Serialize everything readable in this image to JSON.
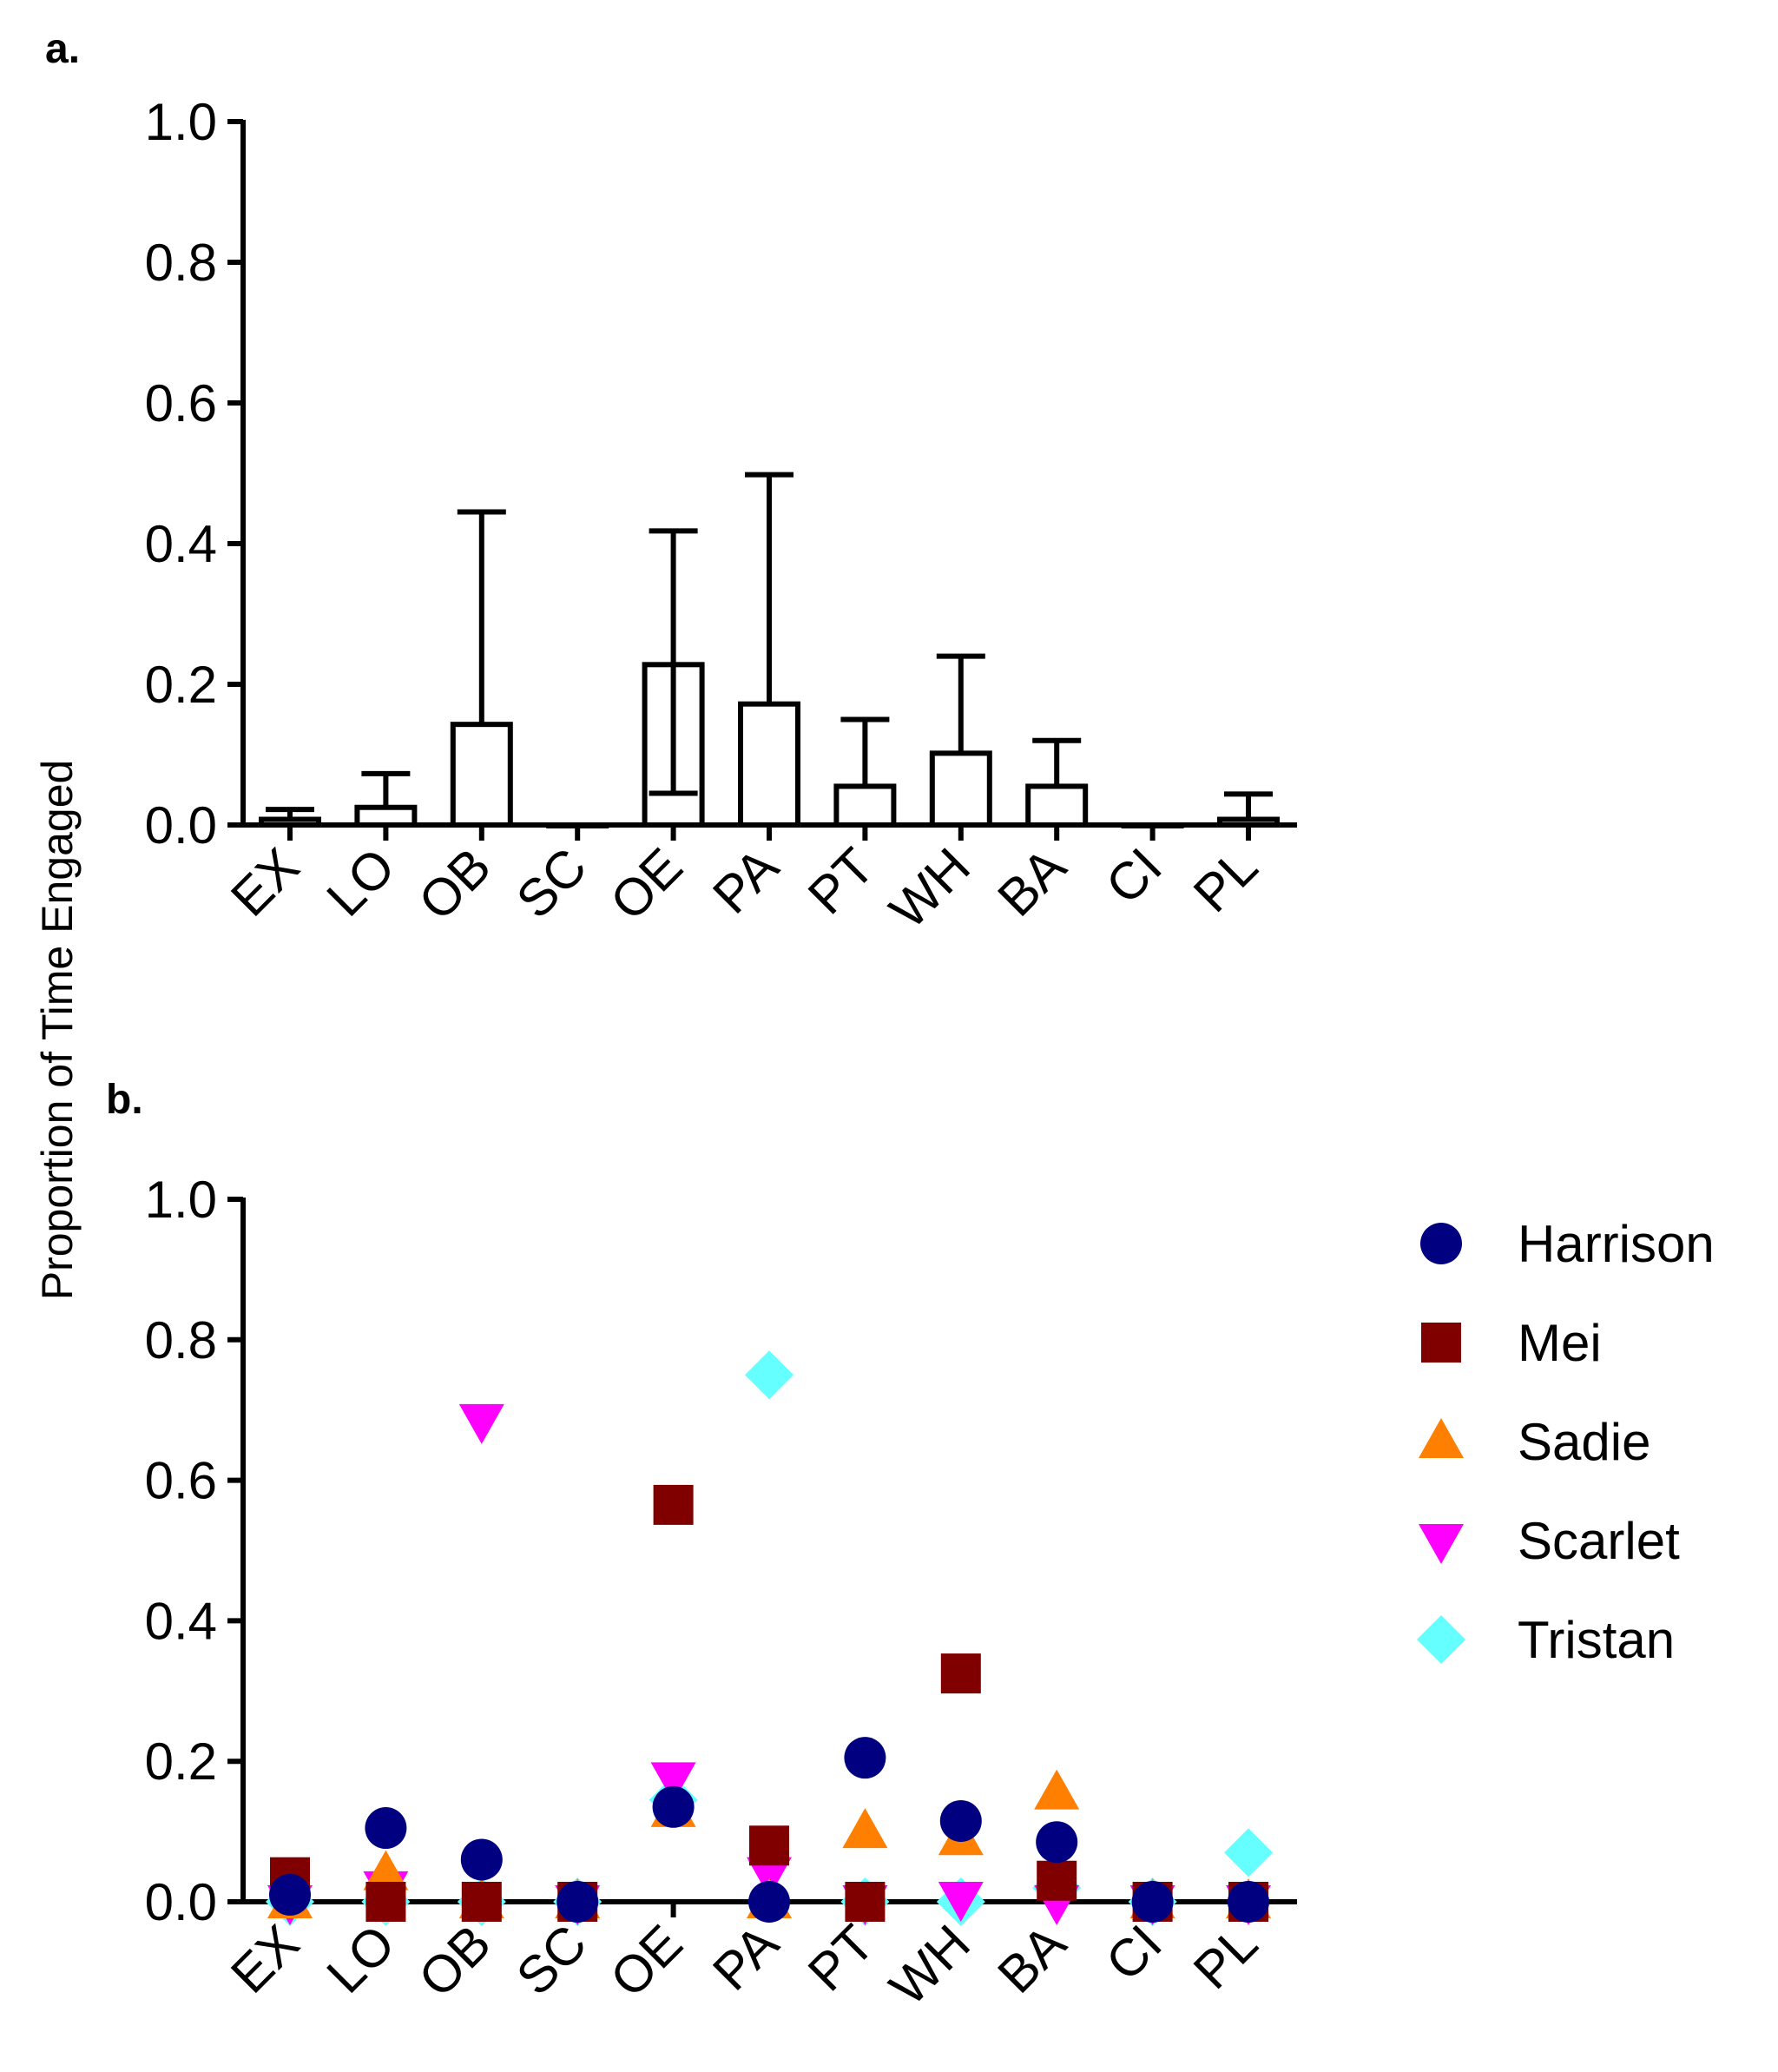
{
  "y_axis_title": "Proportion of Time Engaged",
  "chart_data": [
    {
      "panel": "a.",
      "type": "bar",
      "categories": [
        "EX",
        "LO",
        "OB",
        "SC",
        "OE",
        "PA",
        "PT",
        "WH",
        "BA",
        "CI",
        "PL"
      ],
      "values": [
        0.008,
        0.025,
        0.143,
        0.0,
        0.228,
        0.172,
        0.055,
        0.102,
        0.055,
        0.0,
        0.008
      ],
      "error_upper": [
        0.022,
        0.073,
        0.445,
        0.0,
        0.418,
        0.498,
        0.15,
        0.24,
        0.12,
        0.0,
        0.044
      ],
      "error_lower": [
        0.0,
        0.0,
        0.0,
        0.0,
        0.045,
        0.0,
        0.0,
        0.0,
        0.0,
        0.0,
        0.0
      ],
      "ylabel": "Proportion of Time Engaged",
      "ylim": [
        0,
        1.0
      ],
      "yticks": [
        "0.0",
        "0.2",
        "0.4",
        "0.6",
        "0.8",
        "1.0"
      ],
      "grid": false
    },
    {
      "panel": "b.",
      "type": "scatter",
      "categories": [
        "EX",
        "LO",
        "OB",
        "SC",
        "OE",
        "PA",
        "PT",
        "WH",
        "BA",
        "CI",
        "PL"
      ],
      "ylabel": "Proportion of Time Engaged",
      "ylim": [
        0,
        1.0
      ],
      "yticks": [
        "0.0",
        "0.2",
        "0.4",
        "0.6",
        "0.8",
        "1.0"
      ],
      "legend_position": "right",
      "series": [
        {
          "name": "Tristan",
          "marker": "diamond",
          "color": "#66FFFF",
          "values": [
            0.0,
            0.0,
            0.0,
            0.0,
            0.145,
            0.75,
            0.0,
            0.0,
            0.02,
            0.0,
            0.07
          ]
        },
        {
          "name": "Scarlet",
          "marker": "triangle-down",
          "color": "#FF00FF",
          "values": [
            0.0,
            0.02,
            0.685,
            0.0,
            0.175,
            0.04,
            0.0,
            0.005,
            0.0,
            0.0,
            0.0
          ]
        },
        {
          "name": "Sadie",
          "marker": "triangle-up",
          "color": "#FF7F00",
          "values": [
            0.0,
            0.04,
            0.0,
            0.0,
            0.13,
            0.0,
            0.1,
            0.09,
            0.155,
            0.0,
            0.0
          ]
        },
        {
          "name": "Mei",
          "marker": "square",
          "color": "#800000",
          "values": [
            0.035,
            0.0,
            0.0,
            0.0,
            0.565,
            0.08,
            0.0,
            0.325,
            0.03,
            0.0,
            0.0
          ]
        },
        {
          "name": "Harrison",
          "marker": "circle",
          "color": "#000080",
          "values": [
            0.01,
            0.105,
            0.06,
            0.0,
            0.135,
            0.0,
            0.205,
            0.115,
            0.085,
            0.0,
            0.0
          ]
        }
      ],
      "legend_order": [
        "Harrison",
        "Mei",
        "Sadie",
        "Scarlet",
        "Tristan"
      ]
    }
  ]
}
